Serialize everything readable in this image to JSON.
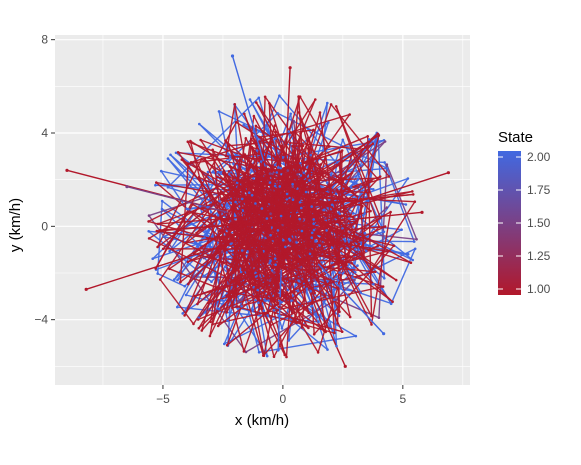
{
  "chart_data": {
    "type": "line",
    "xlabel": "x (km/h)",
    "ylabel": "y (km/h)",
    "xlim": [
      -9.5,
      7.8
    ],
    "ylim": [
      -6.8,
      8.2
    ],
    "x_ticks": [
      -5,
      0,
      5
    ],
    "x_tick_labels": [
      "−5",
      "0",
      "5"
    ],
    "y_ticks": [
      -4,
      0,
      4,
      8
    ],
    "y_tick_labels": [
      "−4",
      "0",
      "4",
      "8"
    ],
    "grid": true,
    "legend": {
      "title": "State",
      "placement": "right",
      "breaks": [
        2.0,
        1.75,
        1.5,
        1.25,
        1.0
      ],
      "labels": [
        "2.00",
        "1.75",
        "1.50",
        "1.25",
        "1.00"
      ],
      "range": [
        1.0,
        2.0
      ]
    },
    "colors": {
      "low": "#b2182b",
      "high": "#4169e1",
      "panel": "#ebebeb",
      "grid": "#ffffff"
    },
    "extreme_points": [
      {
        "x": 6.9,
        "y": 2.3,
        "state": 1.0
      },
      {
        "x": -9.0,
        "y": 2.4,
        "state": 1.0
      },
      {
        "x": -8.2,
        "y": -2.7,
        "state": 1.0
      },
      {
        "x": -6.5,
        "y": 1.7,
        "state": 1.5
      },
      {
        "x": 2.6,
        "y": -6.0,
        "state": 1.0
      },
      {
        "x": 0.3,
        "y": 6.8,
        "state": 1.0
      },
      {
        "x": -2.1,
        "y": 7.3,
        "state": 2.0
      },
      {
        "x": 4.2,
        "y": -4.6,
        "state": 2.0
      },
      {
        "x": -0.2,
        "y": -5.3,
        "state": 2.0
      },
      {
        "x": 5.8,
        "y": 0.6,
        "state": 1.0
      }
    ],
    "series": [
      {
        "state": 1.0,
        "n_points": 600
      },
      {
        "state": 2.0,
        "n_points": 400
      }
    ]
  }
}
